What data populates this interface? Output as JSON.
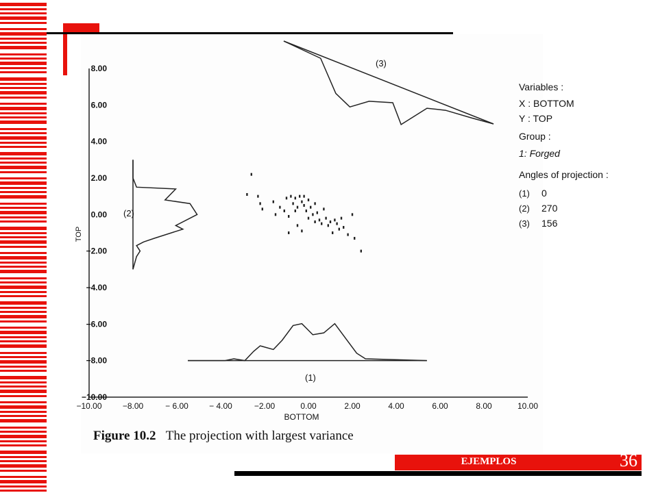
{
  "slide": {
    "section_label": "EJEMPLOS",
    "page_number": "36",
    "accent_color": "#e8120c"
  },
  "figure": {
    "caption_label": "Figure 10.2",
    "caption_text": "The projection with largest variance"
  },
  "chart_data": {
    "type": "scatter",
    "xlabel": "BOTTOM",
    "ylabel": "TOP",
    "xlim": [
      -10,
      10
    ],
    "ylim": [
      -10,
      8
    ],
    "x_ticks": [
      "−10.00",
      "−8.00",
      "− 6.00",
      "− 4.00",
      "−2.00",
      "0.00",
      "2.00",
      "4.00",
      "6.00",
      "8.00",
      "10.00"
    ],
    "y_ticks": [
      "8.00",
      "6.00",
      "4.00",
      "2.00",
      "0.00",
      "−2.00",
      "−4.00",
      "−6.00",
      "−8.00",
      "−10.00"
    ],
    "grid": false,
    "legend": {
      "variables_title": "Variables :",
      "x_var": "X :  BOTTOM",
      "y_var": "Y :  TOP",
      "group_title": "Group :",
      "group_value": "1: Forged",
      "angles_title": "Angles of projection :",
      "angles": [
        {
          "label": "(1)",
          "value": "0"
        },
        {
          "label": "(2)",
          "value": "270"
        },
        {
          "label": "(3)",
          "value": "156"
        }
      ]
    },
    "projection_labels": {
      "p1": "(1)",
      "p2": "(2)",
      "p3": "(3)"
    },
    "points": [
      [
        -2.8,
        1.1
      ],
      [
        -2.3,
        1.0
      ],
      [
        -2.2,
        0.6
      ],
      [
        -2.1,
        0.3
      ],
      [
        -1.6,
        0.7
      ],
      [
        -1.5,
        0.0
      ],
      [
        -1.3,
        0.4
      ],
      [
        -1.1,
        0.2
      ],
      [
        -1.0,
        0.9
      ],
      [
        -0.9,
        -0.1
      ],
      [
        -0.8,
        1.0
      ],
      [
        -0.7,
        0.6
      ],
      [
        -0.6,
        0.9
      ],
      [
        -0.6,
        0.2
      ],
      [
        -0.5,
        -0.6
      ],
      [
        -0.5,
        0.4
      ],
      [
        -0.4,
        1.0
      ],
      [
        -0.3,
        0.7
      ],
      [
        -0.3,
        -0.9
      ],
      [
        -0.2,
        0.5
      ],
      [
        -0.2,
        1.0
      ],
      [
        -0.1,
        0.2
      ],
      [
        0.0,
        0.8
      ],
      [
        0.0,
        -0.2
      ],
      [
        0.1,
        0.4
      ],
      [
        0.2,
        0.0
      ],
      [
        0.3,
        -0.4
      ],
      [
        0.3,
        0.6
      ],
      [
        0.4,
        0.1
      ],
      [
        0.5,
        -0.3
      ],
      [
        0.6,
        -0.5
      ],
      [
        0.7,
        0.3
      ],
      [
        0.8,
        -0.2
      ],
      [
        0.9,
        -0.6
      ],
      [
        1.0,
        -0.4
      ],
      [
        1.1,
        -1.0
      ],
      [
        1.2,
        -0.3
      ],
      [
        1.3,
        -0.5
      ],
      [
        1.4,
        -0.8
      ],
      [
        1.5,
        -0.2
      ],
      [
        1.6,
        -0.7
      ],
      [
        1.8,
        -1.1
      ],
      [
        2.0,
        0.0
      ],
      [
        2.1,
        -1.3
      ],
      [
        2.4,
        -2.0
      ],
      [
        -0.9,
        -1.0
      ],
      [
        -2.6,
        2.2
      ]
    ],
    "projection_1": {
      "x": [
        -5.5,
        -3.8,
        -3.4,
        -2.9,
        -2.5,
        -2.2,
        -1.6,
        -1.2,
        -0.7,
        -0.3,
        0.2,
        0.7,
        1.2,
        1.7,
        2.2,
        2.6,
        5.4
      ],
      "height": [
        0,
        0,
        0.1,
        0,
        0.5,
        0.8,
        0.6,
        1.1,
        1.9,
        2.0,
        1.4,
        1.5,
        2.0,
        1.2,
        0.4,
        0.1,
        0
      ]
    },
    "projection_2": {
      "y": [
        3.0,
        2.0,
        1.5,
        1.4,
        0.8,
        0.6,
        0.0,
        -0.6,
        -0.8,
        -1.3,
        -1.5,
        -1.7,
        -2.0,
        -2.3,
        -3.0
      ],
      "height": [
        0,
        0,
        0.1,
        1.2,
        0.9,
        1.6,
        1.8,
        1.2,
        1.4,
        0.6,
        0.3,
        0.1,
        0.2,
        0.1,
        0
      ]
    },
    "projection_3": {
      "t": [
        0,
        0.18,
        0.3,
        0.38,
        0.45,
        0.55,
        0.62,
        0.7,
        0.78,
        0.9,
        1.0
      ],
      "height": [
        0,
        0.1,
        1.2,
        1.5,
        1.0,
        0.7,
        1.4,
        0.4,
        0.2,
        0.1,
        0
      ]
    }
  }
}
